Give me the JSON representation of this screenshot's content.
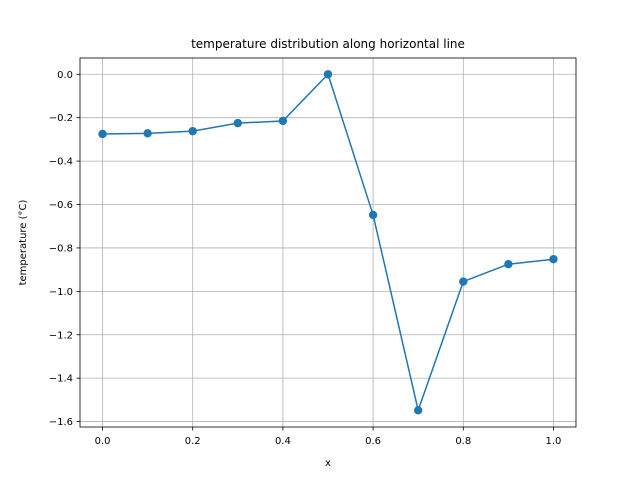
{
  "chart_data": {
    "type": "line",
    "title": "temperature distribution along horizontal line",
    "xlabel": "x",
    "ylabel": "temperature (°C)",
    "x": [
      0.0,
      0.1,
      0.2,
      0.3,
      0.4,
      0.5,
      0.6,
      0.7,
      0.8,
      0.9,
      1.0
    ],
    "series": [
      {
        "values": [
          -0.275,
          -0.272,
          -0.262,
          -0.225,
          -0.215,
          0.0,
          -0.648,
          -1.548,
          -0.955,
          -0.875,
          -0.852
        ],
        "color": "#1f77b4",
        "marker": "circle"
      }
    ],
    "xlim": [
      -0.05,
      1.05
    ],
    "ylim": [
      -1.625,
      0.075
    ],
    "xticks": [
      0.0,
      0.2,
      0.4,
      0.6,
      0.8,
      1.0
    ],
    "xtick_labels": [
      "0.0",
      "0.2",
      "0.4",
      "0.6",
      "0.8",
      "1.0"
    ],
    "yticks": [
      0.0,
      -0.2,
      -0.4,
      -0.6,
      -0.8,
      -1.0,
      -1.2,
      -1.4,
      -1.6
    ],
    "ytick_labels": [
      "0.0",
      "−0.2",
      "−0.4",
      "−0.6",
      "−0.8",
      "−1.0",
      "−1.2",
      "−1.4",
      "−1.6"
    ],
    "grid": true,
    "colors": {
      "grid": "#b0b0b0",
      "axes": "#000000"
    }
  }
}
